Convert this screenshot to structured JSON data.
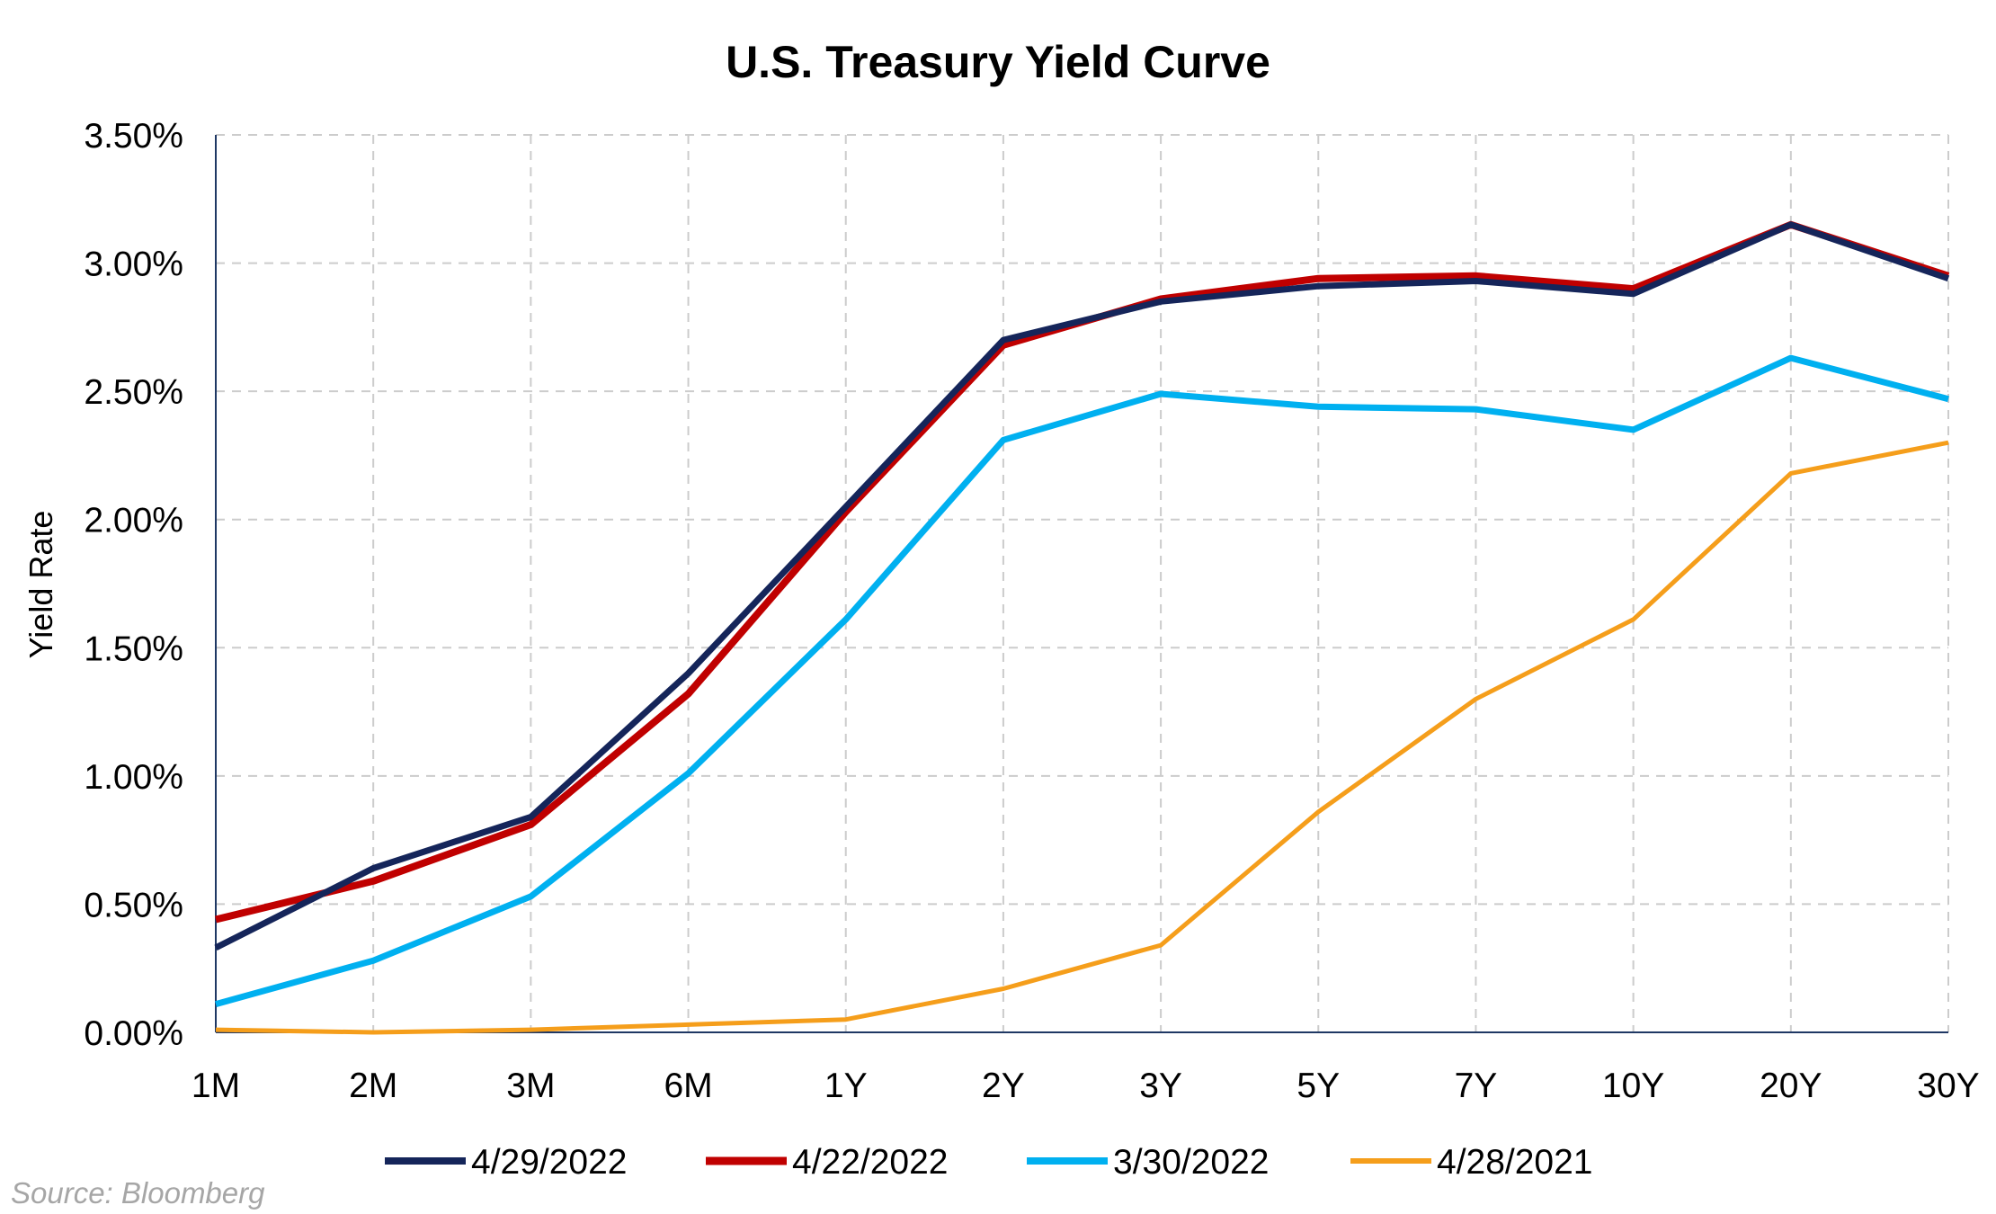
{
  "chart_data": {
    "type": "line",
    "title": "U.S. Treasury Yield Curve",
    "xlabel": "",
    "ylabel": "Yield Rate",
    "categories": [
      "1M",
      "2M",
      "3M",
      "6M",
      "1Y",
      "2Y",
      "3Y",
      "5Y",
      "7Y",
      "10Y",
      "20Y",
      "30Y"
    ],
    "ylim": [
      0,
      3.5
    ],
    "yticks": [
      0,
      0.5,
      1,
      1.5,
      2,
      2.5,
      3,
      3.5
    ],
    "ytick_labels": [
      "0.00%",
      "0.50%",
      "1.00%",
      "1.50%",
      "2.00%",
      "2.50%",
      "3.00%",
      "3.50%"
    ],
    "grid": true,
    "legend_position": "bottom",
    "series": [
      {
        "name": "4/29/2022",
        "color": "#15255a",
        "values": [
          0.33,
          0.64,
          0.84,
          1.4,
          2.05,
          2.7,
          2.85,
          2.91,
          2.93,
          2.88,
          3.15,
          2.94
        ]
      },
      {
        "name": "4/22/2022",
        "color": "#c00000",
        "values": [
          0.44,
          0.59,
          0.81,
          1.32,
          2.03,
          2.68,
          2.86,
          2.94,
          2.95,
          2.9,
          3.15,
          2.95
        ]
      },
      {
        "name": "3/30/2022",
        "color": "#00b0f0",
        "values": [
          0.11,
          0.28,
          0.53,
          1.01,
          1.61,
          2.31,
          2.49,
          2.44,
          2.43,
          2.35,
          2.63,
          2.47
        ]
      },
      {
        "name": "4/28/2021",
        "color": "#f59e1b",
        "values": [
          0.01,
          0.0,
          0.01,
          0.03,
          0.05,
          0.17,
          0.34,
          0.86,
          1.3,
          1.61,
          2.18,
          2.3
        ]
      }
    ]
  },
  "source": "Source: Bloomberg"
}
